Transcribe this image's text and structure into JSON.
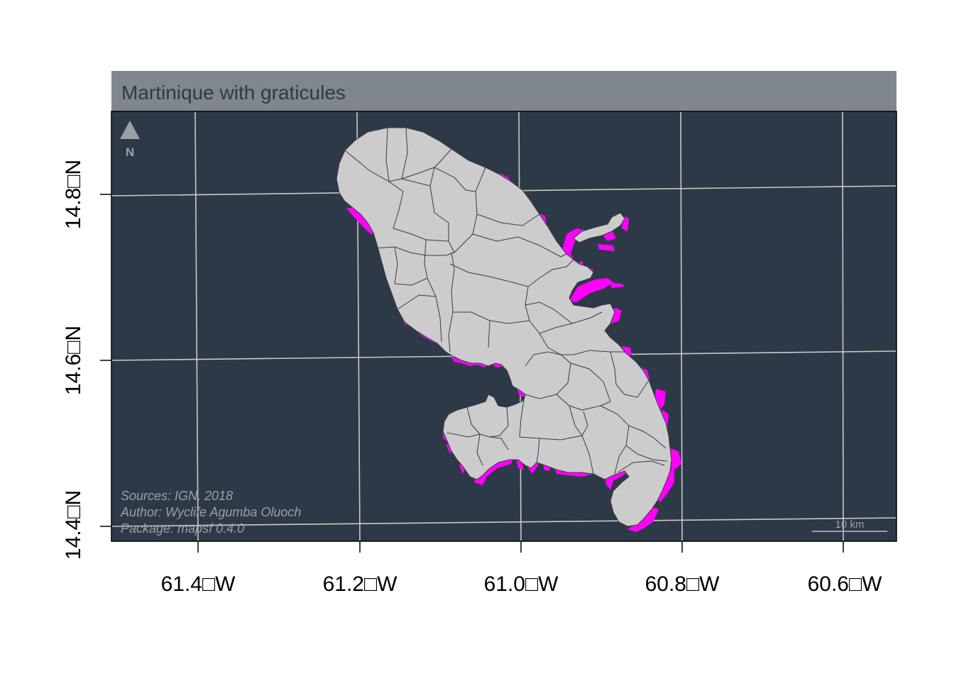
{
  "title": "Martinique with graticules",
  "x_ticks": [
    "61.4□W",
    "61.2□W",
    "61.0□W",
    "60.8□W",
    "60.6□W"
  ],
  "y_ticks": [
    "14.8□N",
    "14.6□N",
    "14.4□N"
  ],
  "north_arrow": {
    "icon": "north-arrow-icon",
    "label": "N"
  },
  "credits": [
    "Sources: IGN, 2018",
    "Author: Wyclife Agumba Oluoch",
    "Package: mapsf 0.4.0"
  ],
  "scale_bar": {
    "label": "10 km"
  },
  "colors": {
    "sea": "#2e3947",
    "land": "#cccccc",
    "coral": "#ff00ff",
    "title_bar": "#7f868e",
    "title_text": "#2e3947",
    "graticule": "#c9c9c9",
    "credit_text": "#9aa0a6"
  }
}
